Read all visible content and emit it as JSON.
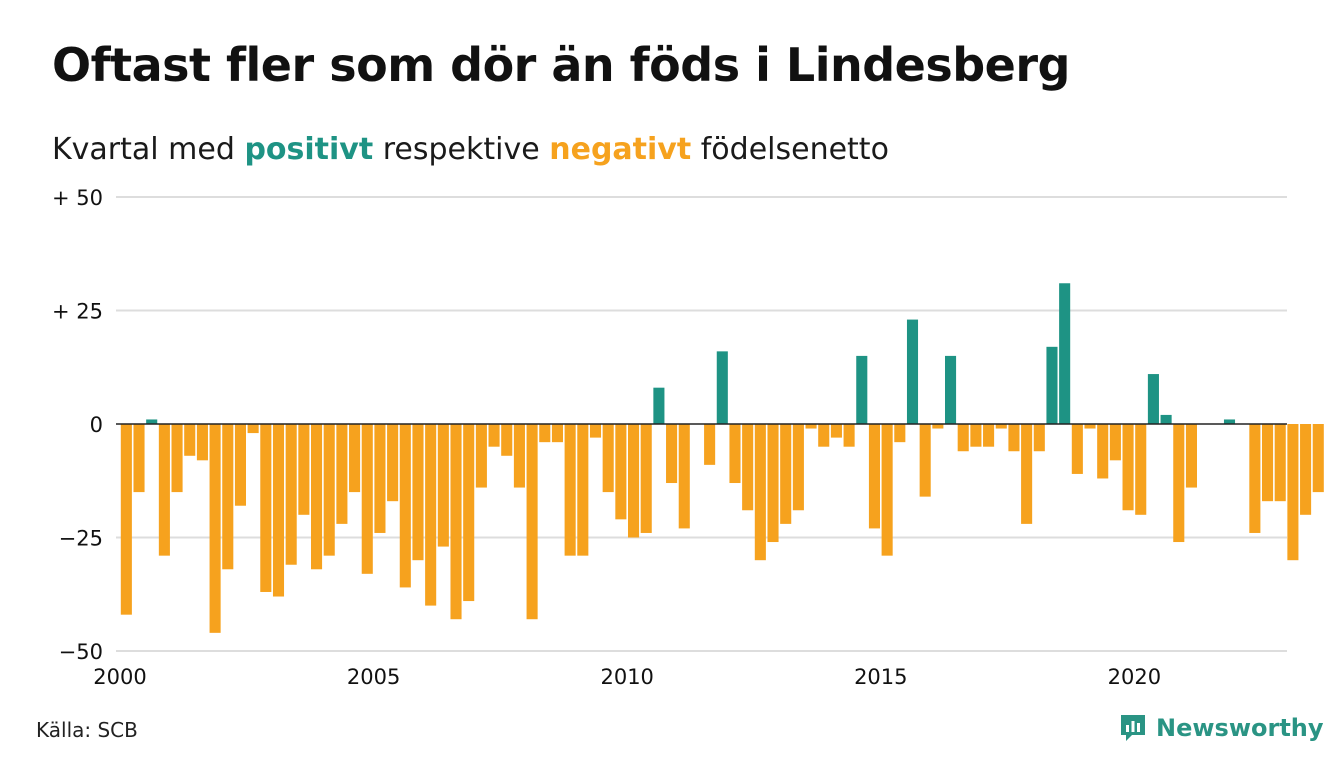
{
  "title": "Oftast fler som dör än föds i Lindesberg",
  "subtitle": {
    "prefix": "Kvartal med",
    "positive_word": "positivt",
    "middle": "respektive",
    "negative_word": "negativt",
    "suffix": "födelsenetto"
  },
  "source": "Källa: SCB",
  "brand": "Newsworthy",
  "colors": {
    "positive": "#1e9384",
    "negative": "#f6a21e",
    "grid": "#dddddd",
    "zero_line": "#222222",
    "brand": "#2a9484"
  },
  "chart_data": {
    "type": "bar",
    "x_start": "2000 Q1",
    "frequency": "quarterly",
    "values": [
      -42,
      -15,
      1,
      -29,
      -15,
      -7,
      -8,
      -46,
      -32,
      -18,
      -2,
      -37,
      -38,
      -31,
      -20,
      -32,
      -29,
      -22,
      -15,
      -33,
      -24,
      -17,
      -36,
      -30,
      -40,
      -27,
      -43,
      -39,
      -14,
      -5,
      -7,
      -14,
      -43,
      -4,
      -4,
      -29,
      -29,
      -3,
      -15,
      -21,
      -25,
      -24,
      8,
      -13,
      -23,
      0,
      -9,
      16,
      -13,
      -19,
      -30,
      -26,
      -22,
      -19,
      -1,
      -5,
      -3,
      -5,
      15,
      -23,
      -29,
      -4,
      23,
      -16,
      -1,
      15,
      -6,
      -5,
      -5,
      -1,
      -6,
      -22,
      -6,
      17,
      31,
      -11,
      -1,
      -12,
      -8,
      -19,
      -20,
      11,
      2,
      -26,
      -14,
      0,
      0,
      1,
      0,
      -24,
      -17,
      -17,
      -30,
      -20,
      -15
    ],
    "ylim": [
      -50,
      50
    ],
    "y_ticks": [
      50,
      25,
      0,
      -25,
      -50
    ],
    "y_tick_labels": [
      "+ 50",
      "+ 25",
      "0",
      "−25",
      "−50"
    ],
    "x_ticks": [
      2000,
      2005,
      2010,
      2015,
      2020
    ],
    "x_tick_labels": [
      "2000",
      "2005",
      "2010",
      "2015",
      "2020"
    ],
    "grid": true,
    "legend": "none"
  }
}
